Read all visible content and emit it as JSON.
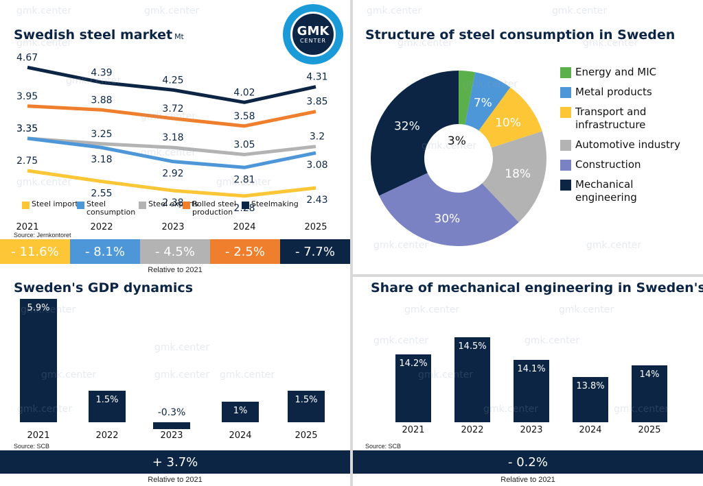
{
  "logo": {
    "line1": "GMK",
    "line2": "CENTER"
  },
  "watermark": "gmk.center",
  "chart_data": [
    {
      "type": "line",
      "title": "Swedish steel market",
      "unit": "Mt",
      "categories": [
        "2021",
        "2022",
        "2023",
        "2024",
        "2025"
      ],
      "series": [
        {
          "name": "Steelmaking",
          "color": "#0c2545",
          "values": [
            4.67,
            4.39,
            4.25,
            4.02,
            4.31
          ]
        },
        {
          "name": "Rolled steel production",
          "color": "#f07f2d",
          "values": [
            3.95,
            3.88,
            3.72,
            3.58,
            3.85
          ]
        },
        {
          "name": "Steel exports",
          "color": "#b3b3b3",
          "values": [
            3.35,
            3.25,
            3.18,
            3.05,
            3.2
          ]
        },
        {
          "name": "Steel consumption",
          "color": "#4d97d8",
          "values": [
            3.35,
            3.18,
            2.92,
            2.81,
            3.08
          ]
        },
        {
          "name": "Steel imports",
          "color": "#fcc637",
          "values": [
            2.75,
            2.55,
            2.38,
            2.28,
            2.43
          ]
        }
      ],
      "legend": [
        {
          "label": "Steel imports",
          "color": "#fcc637"
        },
        {
          "label": "Steel consumption",
          "color": "#4d97d8"
        },
        {
          "label": "Steel exports",
          "color": "#b3b3b3"
        },
        {
          "label": "Rolled steel production",
          "color": "#f07f2d"
        },
        {
          "label": "Steelmaking",
          "color": "#0c2545"
        }
      ],
      "source": "Source: Jernkontoret",
      "changes": [
        {
          "label": "- 11.6%",
          "color": "#fcc637"
        },
        {
          "label": "- 8.1%",
          "color": "#4d97d8"
        },
        {
          "label": "- 4.5%",
          "color": "#b3b3b3"
        },
        {
          "label": "- 2.5%",
          "color": "#f07f2d"
        },
        {
          "label": "- 7.7%",
          "color": "#0c2545"
        }
      ],
      "relative_note": "Relative to 2021"
    },
    {
      "type": "pie",
      "title": "Structure of steel consumption in Sweden",
      "slices": [
        {
          "name": "Energy and MIC",
          "value": 3,
          "label": "3%",
          "color": "#5cb04c"
        },
        {
          "name": "Metal products",
          "value": 7,
          "label": "7%",
          "color": "#4d97d8"
        },
        {
          "name": "Transport and infrastructure",
          "value": 10,
          "label": "10%",
          "color": "#fcc637"
        },
        {
          "name": "Automotive industry",
          "value": 18,
          "label": "18%",
          "color": "#b3b3b3"
        },
        {
          "name": "Construction",
          "value": 30,
          "label": "30%",
          "color": "#7b82c4"
        },
        {
          "name": "Mechanical engineering",
          "value": 32,
          "label": "32%",
          "color": "#0c2545"
        }
      ],
      "legend_lines": [
        [
          "Energy and MIC"
        ],
        [
          "Metal products"
        ],
        [
          "Transport and",
          "infrastructure"
        ],
        [
          "Automotive industry"
        ],
        [
          "Construction"
        ],
        [
          "Mechanical",
          "engineering"
        ]
      ]
    },
    {
      "type": "bar",
      "title": "Sweden's GDP dynamics",
      "categories": [
        "2021",
        "2022",
        "2023",
        "2024",
        "2025"
      ],
      "values": [
        5.9,
        1.5,
        -0.3,
        1,
        1.5
      ],
      "labels": [
        "5.9%",
        "1.5%",
        "-0.3%",
        "1%",
        "1.5%"
      ],
      "source": "Source: SCB",
      "total": "+ 3.7%",
      "relative_note": "Relative to 2021"
    },
    {
      "type": "bar",
      "title": "Share of mechanical engineering in Sweden's GDP",
      "categories": [
        "2021",
        "2022",
        "2023",
        "2024",
        "2025"
      ],
      "values": [
        14.2,
        14.5,
        14.1,
        13.8,
        14
      ],
      "labels": [
        "14.2%",
        "14.5%",
        "14.1%",
        "13.8%",
        "14%"
      ],
      "source": "Source: SCB",
      "total": "- 0.2%",
      "relative_note": "Relative to 2021"
    }
  ]
}
